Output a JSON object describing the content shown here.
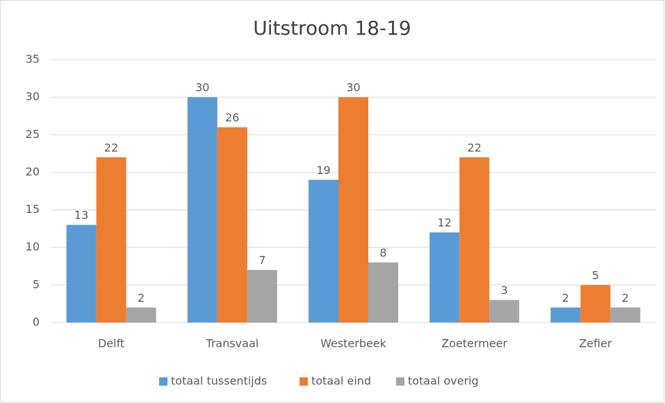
{
  "chart_data": {
    "type": "bar",
    "title": "Uitstroom 18-19",
    "categories": [
      "Delft",
      "Transvaal",
      "Westerbeek",
      "Zoetermeer",
      "Zefier"
    ],
    "series": [
      {
        "name": "totaal tussentijds",
        "color": "#5b9bd5",
        "values": [
          13,
          30,
          19,
          12,
          2
        ]
      },
      {
        "name": "totaal eind",
        "color": "#ed7d31",
        "values": [
          22,
          26,
          30,
          22,
          5
        ]
      },
      {
        "name": "totaal overig",
        "color": "#a5a5a5",
        "values": [
          2,
          7,
          8,
          3,
          2
        ]
      }
    ],
    "ylim": [
      0,
      35
    ],
    "yticks": [
      0,
      5,
      10,
      15,
      20,
      25,
      30,
      35
    ],
    "grid": true,
    "legend": "bottom"
  }
}
